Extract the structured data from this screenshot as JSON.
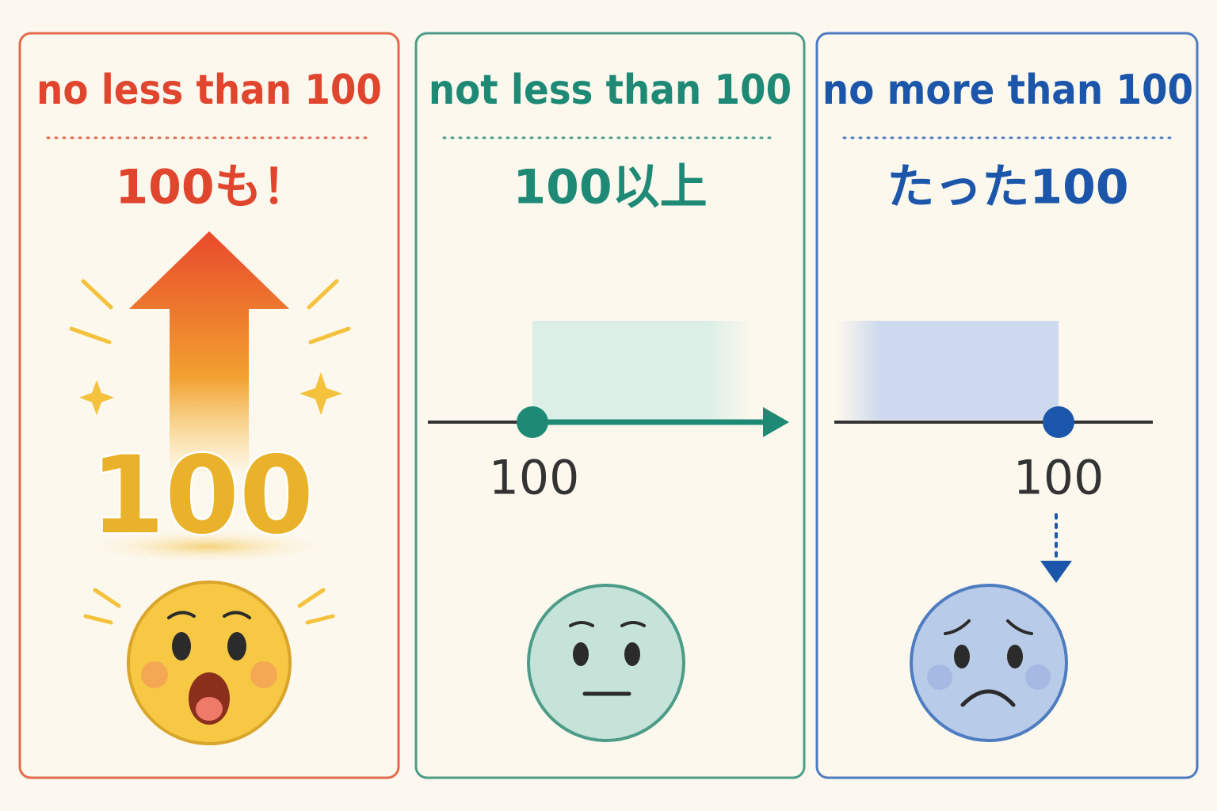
{
  "panels": [
    {
      "title": "no less than 100",
      "subtitle": "100も！",
      "number": "100"
    },
    {
      "title": "not less than 100",
      "subtitle": "100以上",
      "number": "100"
    },
    {
      "title": "no more than 100",
      "subtitle": "たった100",
      "number": "100"
    }
  ]
}
